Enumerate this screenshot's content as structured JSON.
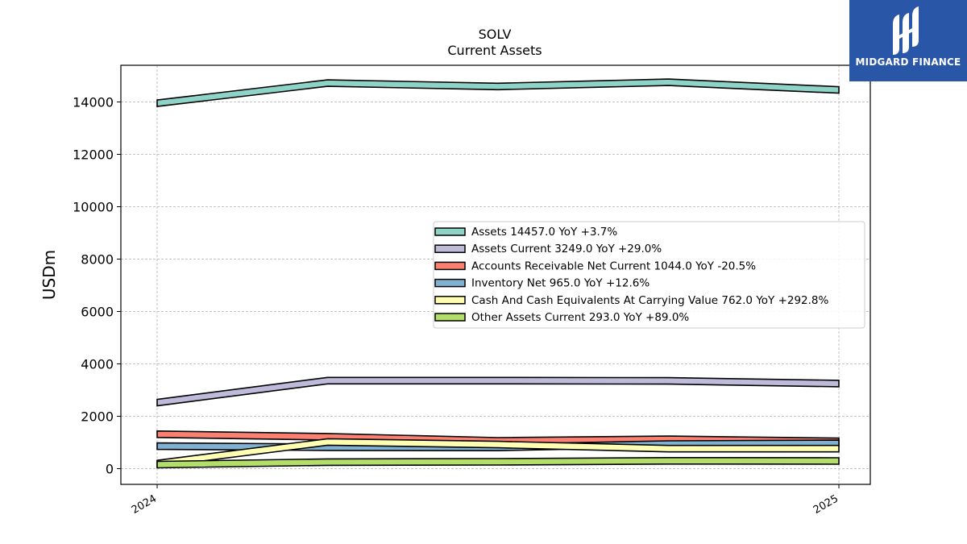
{
  "chart_data": {
    "type": "area",
    "title": "SOLV",
    "subtitle": "Current  Assets",
    "ylabel": "USDm",
    "xlabel": "",
    "x_tick_labels": [
      "2024",
      "2025"
    ],
    "ylim": [
      -600,
      15400
    ],
    "yticks": [
      0,
      2000,
      4000,
      6000,
      8000,
      10000,
      12000,
      14000
    ],
    "grid": true,
    "legend_position": "center-right",
    "x_points": 5,
    "series": [
      {
        "name": "Assets  14457.0 YoY +3.7%",
        "color": "#8dd3c7",
        "values": [
          13950,
          14720,
          14590,
          14750,
          14457
        ]
      },
      {
        "name": "Assets Current  3249.0 YoY +29.0%",
        "color": "#bebada",
        "values": [
          2520,
          3360,
          3360,
          3350,
          3249
        ]
      },
      {
        "name": "Accounts Receivable Net Current  1044.0 YoY -20.5%",
        "color": "#fb8072",
        "values": [
          1313,
          1220,
          1060,
          1120,
          1044
        ]
      },
      {
        "name": "Inventory Net  965.0 YoY +12.6%",
        "color": "#80b1d3",
        "values": [
          857,
          820,
          810,
          940,
          965
        ]
      },
      {
        "name": "Cash And Cash Equivalents At Carrying Value  762.0 YoY +292.8%",
        "color": "#ffffb3",
        "values": [
          194,
          1020,
          920,
          762,
          762
        ]
      },
      {
        "name": "Other Assets Current  293.0 YoY +89.0%",
        "color": "#b3de69",
        "values": [
          155,
          250,
          260,
          300,
          293
        ]
      }
    ]
  },
  "logo": {
    "text": "MIDGARD FINANCE"
  }
}
